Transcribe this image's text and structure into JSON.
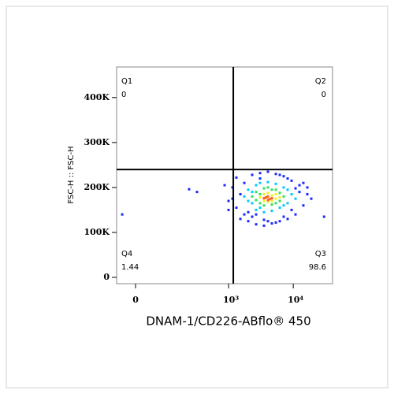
{
  "chart_data": {
    "type": "scatter",
    "x_label": "DNAM-1/CD226-ABflo® 450",
    "y_label": "FSC-H :: FSC-H",
    "xscale": "biexponential",
    "xlim": [
      -53,
      40500
    ],
    "xticks": [
      {
        "value": 0,
        "label": "0"
      },
      {
        "value": 1000,
        "label": "10³"
      },
      {
        "value": 10000,
        "label": "10⁴"
      }
    ],
    "ylim": [
      -14000,
      468000
    ],
    "yticks": [
      0,
      {
        "value": 100000,
        "label": "100K"
      },
      {
        "value": 200000,
        "label": "200K"
      },
      {
        "value": 300000,
        "label": "300K"
      },
      {
        "value": 400000,
        "label": "400K"
      }
    ],
    "gates": {
      "x": 1183,
      "y": 240000,
      "color": "#000000"
    },
    "quadrants": [
      {
        "name": "Q1",
        "value": 0,
        "corner": "top-left"
      },
      {
        "name": "Q2",
        "value": 0,
        "corner": "top-right"
      },
      {
        "name": "Q3",
        "value": 98.6,
        "corner": "bottom-right"
      },
      {
        "name": "Q4",
        "value": 1.44,
        "corner": "bottom-left"
      }
    ],
    "series": [
      {
        "color": "#1a2aff",
        "x": [
          240,
          321,
          867,
          998,
          1148,
          1320,
          1522,
          1750,
          2013,
          2316,
          2667,
          3070,
          3531,
          4060,
          4672,
          5380,
          6190,
          7118,
          8190,
          9424,
          10840,
          12470,
          14340,
          16500,
          18980,
          1148,
          1320,
          1522,
          998,
          2013,
          2667,
          3531,
          5380,
          7118,
          9424,
          12470,
          14340,
          16500,
          1750,
          2316,
          3070,
          4060,
          6190,
          8190,
          10840,
          -36,
          30000
        ],
        "values": [
          196000,
          190000,
          205000,
          150000,
          175000,
          222000,
          130000,
          210000,
          125000,
          228000,
          118000,
          232000,
          115000,
          235000,
          120000,
          230000,
          125000,
          225000,
          130000,
          215000,
          140000,
          205000,
          160000,
          185000,
          175000,
          200000,
          155000,
          185000,
          170000,
          145000,
          140000,
          128000,
          122000,
          135000,
          150000,
          190000,
          210000,
          200000,
          140000,
          135000,
          220000,
          125000,
          228000,
          220000,
          198000,
          140000,
          135000
        ]
      },
      {
        "color": "#00c8ff",
        "x": [
          1750,
          2013,
          2316,
          2667,
          2667,
          3070,
          3531,
          4060,
          4672,
          5380,
          6190,
          7118,
          8190,
          9424,
          10840,
          2013,
          2316,
          8190,
          3070,
          7118
        ],
        "values": [
          180000,
          195000,
          165000,
          205000,
          150000,
          210000,
          145000,
          212000,
          148000,
          208000,
          155000,
          200000,
          165000,
          185000,
          175000,
          170000,
          190000,
          195000,
          155000,
          160000
        ]
      },
      {
        "color": "#2ee05a",
        "x": [
          2316,
          2667,
          3070,
          3531,
          3531,
          4060,
          4672,
          5380,
          6190,
          6190,
          7118,
          2667,
          4672,
          3070,
          5380
        ],
        "values": [
          180000,
          190000,
          165000,
          198000,
          160000,
          200000,
          162000,
          195000,
          170000,
          188000,
          180000,
          172000,
          195000,
          185000,
          165000
        ]
      },
      {
        "color": "#f0f020",
        "x": [
          3070,
          3531,
          3531,
          4060,
          4060,
          4672,
          5380,
          5380,
          4672,
          6190
        ],
        "values": [
          178000,
          185000,
          170000,
          188000,
          168000,
          182000,
          175000,
          185000,
          170000,
          178000
        ]
      },
      {
        "color": "#ff5a1a",
        "x": [
          3531,
          4060,
          4060,
          4672,
          4300,
          3800
        ],
        "values": [
          176000,
          180000,
          172000,
          176000,
          174000,
          178000
        ]
      }
    ]
  }
}
